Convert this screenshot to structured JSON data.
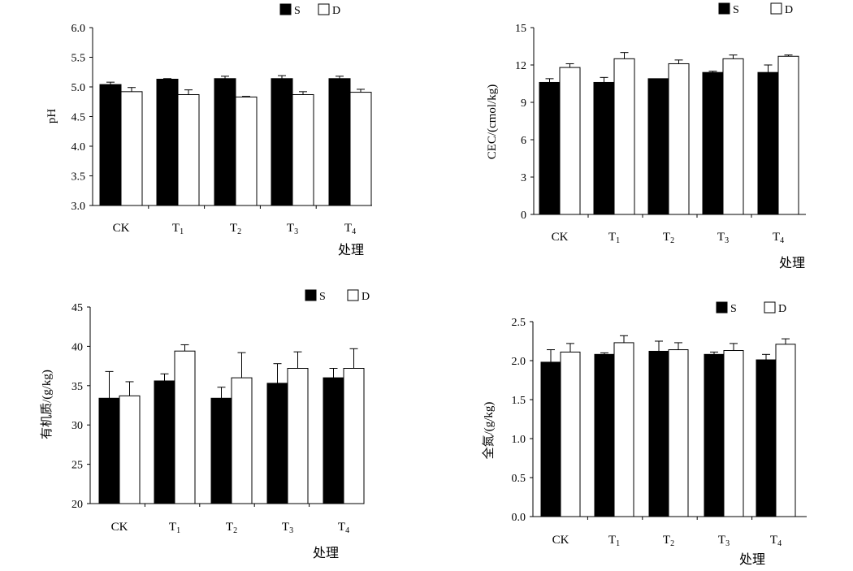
{
  "legend": {
    "s_label": "S",
    "d_label": "D"
  },
  "colors": {
    "s_fill": "#000000",
    "d_fill": "#ffffff",
    "axis": "#000000"
  },
  "chart_data": [
    {
      "type": "bar",
      "categories": [
        "CK",
        "T1",
        "T2",
        "T3",
        "T4"
      ],
      "ylabel": "pH",
      "xlabel": "处理",
      "ylim": [
        3.0,
        6.0
      ],
      "yticks": [
        "3.0",
        "3.5",
        "4.0",
        "4.5",
        "5.0",
        "5.5",
        "6.0"
      ],
      "series": [
        {
          "name": "S",
          "values": [
            5.04,
            5.13,
            5.14,
            5.14,
            5.14
          ],
          "errors": [
            0.04,
            0.01,
            0.04,
            0.05,
            0.04
          ]
        },
        {
          "name": "D",
          "values": [
            4.92,
            4.87,
            4.83,
            4.87,
            4.91
          ],
          "errors": [
            0.07,
            0.08,
            0.01,
            0.05,
            0.05
          ]
        }
      ],
      "legend_position": "top-right",
      "grid": false
    },
    {
      "type": "bar",
      "categories": [
        "CK",
        "T1",
        "T2",
        "T3",
        "T4"
      ],
      "ylabel": "CEC/(cmol/kg)",
      "xlabel": "处理",
      "ylim": [
        0,
        15
      ],
      "yticks": [
        "0",
        "3",
        "6",
        "9",
        "12",
        "15"
      ],
      "series": [
        {
          "name": "S",
          "values": [
            10.6,
            10.6,
            10.9,
            11.4,
            11.4
          ],
          "errors": [
            0.3,
            0.4,
            0.0,
            0.1,
            0.6
          ]
        },
        {
          "name": "D",
          "values": [
            11.8,
            12.5,
            12.1,
            12.5,
            12.7
          ],
          "errors": [
            0.3,
            0.5,
            0.3,
            0.3,
            0.1
          ]
        }
      ],
      "legend_position": "top-right",
      "grid": false
    },
    {
      "type": "bar",
      "categories": [
        "CK",
        "T1",
        "T2",
        "T3",
        "T4"
      ],
      "ylabel": "有机质/(g/kg)",
      "xlabel": "处理",
      "ylim": [
        20,
        45
      ],
      "yticks": [
        "20",
        "25",
        "30",
        "35",
        "40",
        "45"
      ],
      "series": [
        {
          "name": "S",
          "values": [
            33.4,
            35.6,
            33.4,
            35.3,
            36.0
          ],
          "errors": [
            3.4,
            0.9,
            1.4,
            2.5,
            1.2
          ]
        },
        {
          "name": "D",
          "values": [
            33.7,
            39.4,
            36.0,
            37.2,
            37.2
          ],
          "errors": [
            1.8,
            0.8,
            3.2,
            2.1,
            2.5
          ]
        }
      ],
      "legend_position": "top-right",
      "grid": false
    },
    {
      "type": "bar",
      "categories": [
        "CK",
        "T1",
        "T2",
        "T3",
        "T4"
      ],
      "ylabel": "全氮/(g/kg)",
      "xlabel": "处理",
      "ylim": [
        0.0,
        2.5
      ],
      "yticks": [
        "0.0",
        "0.5",
        "1.0",
        "1.5",
        "2.0",
        "2.5"
      ],
      "series": [
        {
          "name": "S",
          "values": [
            1.98,
            2.08,
            2.12,
            2.08,
            2.01
          ],
          "errors": [
            0.16,
            0.02,
            0.13,
            0.03,
            0.07
          ]
        },
        {
          "name": "D",
          "values": [
            2.11,
            2.23,
            2.14,
            2.13,
            2.21
          ],
          "errors": [
            0.11,
            0.09,
            0.09,
            0.09,
            0.07
          ]
        }
      ],
      "legend_position": "top-right",
      "grid": false
    }
  ]
}
